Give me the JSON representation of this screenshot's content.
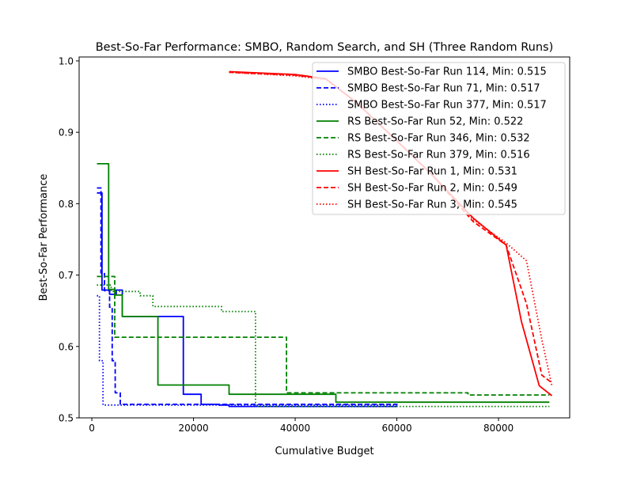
{
  "chart_data": {
    "type": "line",
    "title": "Best-So-Far Performance: SMBO, Random Search, and SH (Three Random Runs)",
    "xlabel": "Cumulative Budget",
    "ylabel": "Best-So-Far Performance",
    "xlim": [
      -2500,
      94000
    ],
    "ylim": [
      0.5,
      1.0055
    ],
    "xticks": [
      {
        "value": 0,
        "label": "0"
      },
      {
        "value": 20000,
        "label": "20000"
      },
      {
        "value": 40000,
        "label": "40000"
      },
      {
        "value": 60000,
        "label": "60000"
      },
      {
        "value": 80000,
        "label": "80000"
      }
    ],
    "yticks": [
      {
        "value": 0.5,
        "label": "0.5"
      },
      {
        "value": 0.6,
        "label": "0.6"
      },
      {
        "value": 0.7,
        "label": "0.7"
      },
      {
        "value": 0.8,
        "label": "0.8"
      },
      {
        "value": 0.9,
        "label": "0.9"
      },
      {
        "value": 1.0,
        "label": "1.0"
      }
    ],
    "grid": false,
    "legend_position": "top-right",
    "series": [
      {
        "name": "SMBO Best-So-Far Run 114, Min: 0.515",
        "color": "#0000ff",
        "dash": "solid",
        "step": true,
        "x": [
          1000,
          2000,
          3500,
          4800,
          6000,
          17000,
          18000,
          20500,
          21500,
          25000,
          27000,
          60000
        ],
        "y": [
          0.815,
          0.679,
          0.673,
          0.679,
          0.642,
          0.642,
          0.533,
          0.533,
          0.519,
          0.518,
          0.516,
          0.515
        ]
      },
      {
        "name": "SMBO Best-So-Far Run 71, Min: 0.517",
        "color": "#0000ff",
        "dash": "dashed",
        "step": true,
        "x": [
          1000,
          1800,
          2500,
          3500,
          4000,
          4600,
          5600,
          60000
        ],
        "y": [
          0.822,
          0.703,
          0.678,
          0.655,
          0.58,
          0.535,
          0.519,
          0.517
        ]
      },
      {
        "name": "SMBO Best-So-Far Run 377, Min: 0.517",
        "color": "#0000ff",
        "dash": "dotted",
        "step": true,
        "x": [
          1000,
          1500,
          2200,
          60000
        ],
        "y": [
          0.671,
          0.58,
          0.518,
          0.517
        ]
      },
      {
        "name": "RS Best-So-Far Run 52, Min: 0.522",
        "color": "#008000",
        "dash": "solid",
        "step": true,
        "x": [
          1000,
          2500,
          3300,
          4500,
          6000,
          12000,
          13000,
          26000,
          27000,
          46500,
          48000,
          90000
        ],
        "y": [
          0.856,
          0.856,
          0.68,
          0.672,
          0.642,
          0.642,
          0.546,
          0.546,
          0.533,
          0.533,
          0.522,
          0.522
        ]
      },
      {
        "name": "RS Best-So-Far Run 346, Min: 0.532",
        "color": "#008000",
        "dash": "dashed",
        "step": true,
        "x": [
          1000,
          3500,
          4500,
          37500,
          38300,
          73000,
          74000,
          90000
        ],
        "y": [
          0.698,
          0.698,
          0.613,
          0.613,
          0.535,
          0.535,
          0.532,
          0.532
        ]
      },
      {
        "name": "RS Best-So-Far Run 379, Min: 0.516",
        "color": "#008000",
        "dash": "dotted",
        "step": true,
        "x": [
          1000,
          2500,
          3800,
          8000,
          9500,
          11000,
          12000,
          24500,
          25500,
          31500,
          32200,
          90000
        ],
        "y": [
          0.686,
          0.686,
          0.677,
          0.677,
          0.671,
          0.671,
          0.656,
          0.656,
          0.649,
          0.649,
          0.516,
          0.516
        ]
      },
      {
        "name": "SH Best-So-Far Run 1, Min: 0.531",
        "color": "#ff0000",
        "dash": "solid",
        "step": false,
        "x": [
          27000,
          40000,
          46000,
          52000,
          60000,
          67000,
          75000,
          81500,
          84500,
          88000,
          90500
        ],
        "y": [
          0.985,
          0.981,
          0.975,
          0.942,
          0.888,
          0.84,
          0.78,
          0.742,
          0.635,
          0.545,
          0.531
        ]
      },
      {
        "name": "SH Best-So-Far Run 2, Min: 0.549",
        "color": "#ff0000",
        "dash": "dashed",
        "step": false,
        "x": [
          27000,
          40000,
          46000,
          52000,
          60000,
          67000,
          75000,
          81500,
          85500,
          88500,
          90500
        ],
        "y": [
          0.984,
          0.98,
          0.975,
          0.942,
          0.888,
          0.84,
          0.775,
          0.742,
          0.66,
          0.56,
          0.549
        ]
      },
      {
        "name": "SH Best-So-Far Run 3, Min: 0.545",
        "color": "#ff0000",
        "dash": "dotted",
        "step": false,
        "x": [
          27000,
          40000,
          46000,
          52000,
          60000,
          67000,
          75000,
          81500,
          85500,
          88500,
          90500
        ],
        "y": [
          0.984,
          0.979,
          0.974,
          0.942,
          0.888,
          0.84,
          0.778,
          0.745,
          0.72,
          0.61,
          0.545
        ]
      }
    ]
  }
}
